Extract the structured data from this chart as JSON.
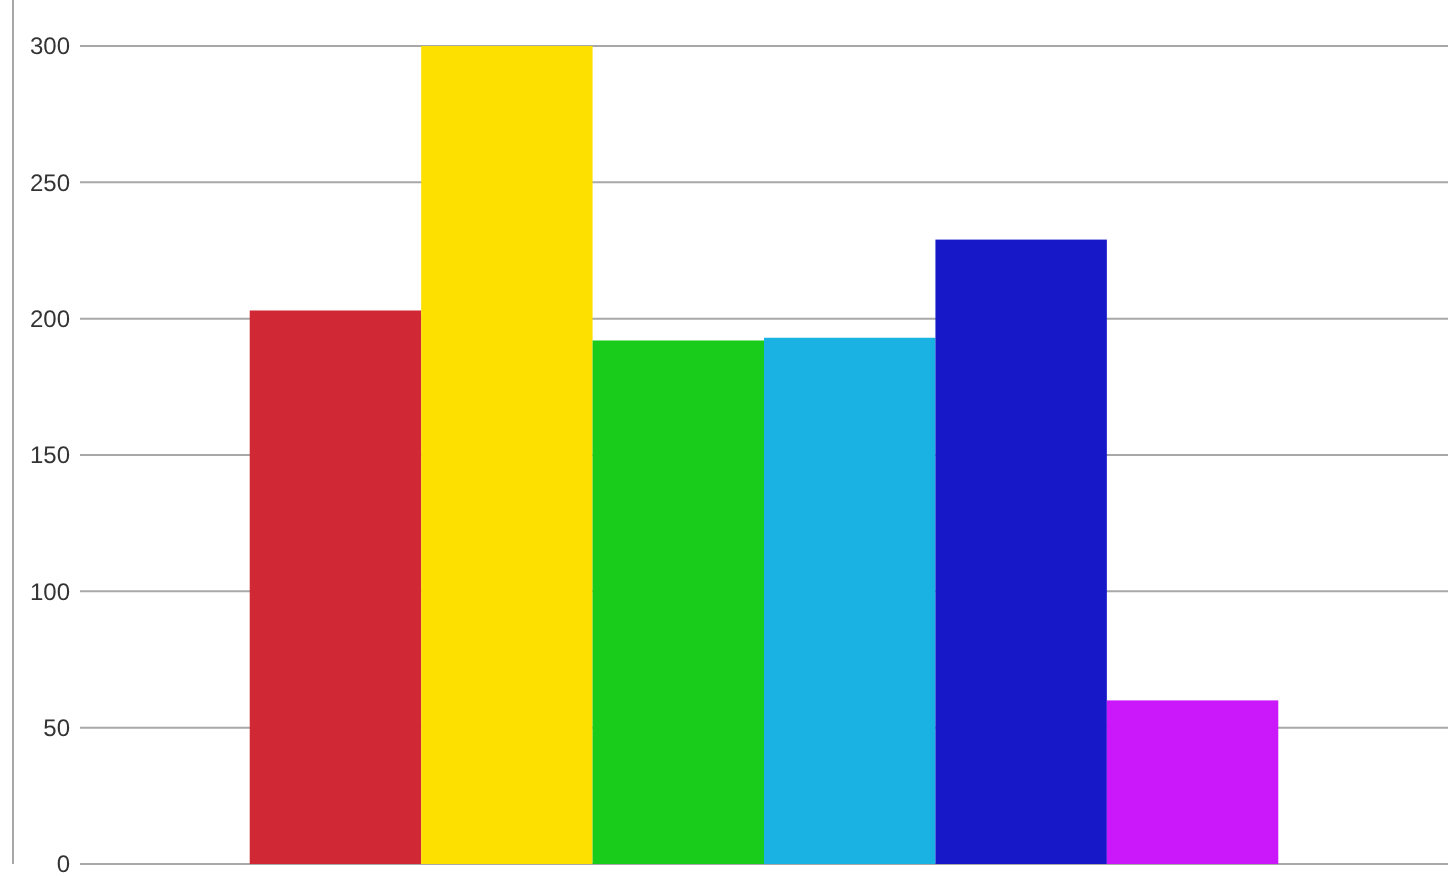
{
  "chart_data": {
    "type": "bar",
    "categories": [
      null
    ],
    "series": [
      {
        "color": "#d02935",
        "values": [
          203
        ]
      },
      {
        "color": "#fde000",
        "values": [
          300
        ]
      },
      {
        "color": "#19cc1c",
        "values": [
          192
        ]
      },
      {
        "color": "#1ab1e3",
        "values": [
          193
        ]
      },
      {
        "color": "#1719c9",
        "values": [
          229
        ]
      },
      {
        "color": "#ca18fb",
        "values": [
          60
        ]
      }
    ],
    "ylim": [
      0,
      300
    ],
    "yticks": [
      0,
      50,
      100,
      150,
      200,
      250,
      300
    ],
    "grid": "y"
  }
}
